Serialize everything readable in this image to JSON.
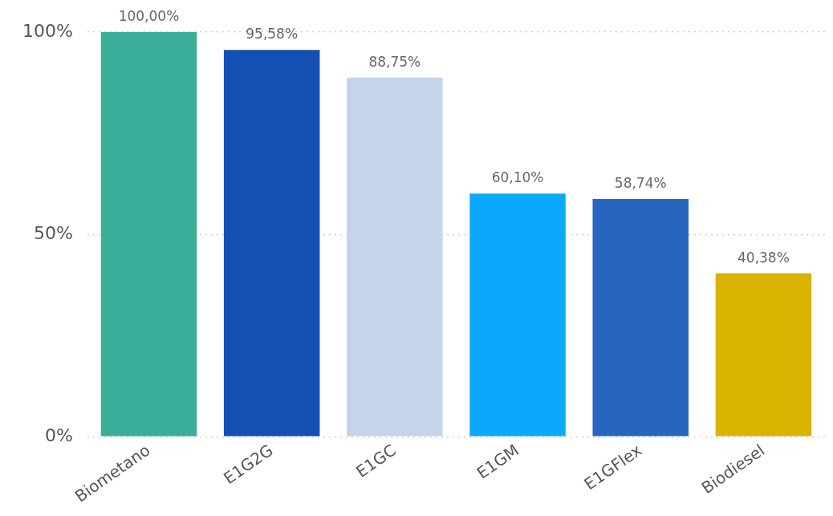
{
  "chart_data": {
    "type": "bar",
    "categories": [
      "Biometano",
      "E1G2G",
      "E1GC",
      "E1GM",
      "E1GFlex",
      "Biodiesel"
    ],
    "values": [
      100.0,
      95.58,
      88.75,
      60.1,
      58.74,
      40.38
    ],
    "colors": [
      "#3aae99",
      "#144fb3",
      "#c5d4ea",
      "#0aa9fd",
      "#2766be",
      "#d9b300"
    ],
    "value_labels": [
      "100,00%",
      "95,58%",
      "88,75%",
      "60,10%",
      "58,74%",
      "40,38%"
    ],
    "ylim": [
      0,
      100
    ],
    "yticks": [
      {
        "value": 0,
        "label": "0%"
      },
      {
        "value": 50,
        "label": "50%"
      },
      {
        "value": 100,
        "label": "100%"
      }
    ],
    "grid": "y",
    "legend": false
  }
}
